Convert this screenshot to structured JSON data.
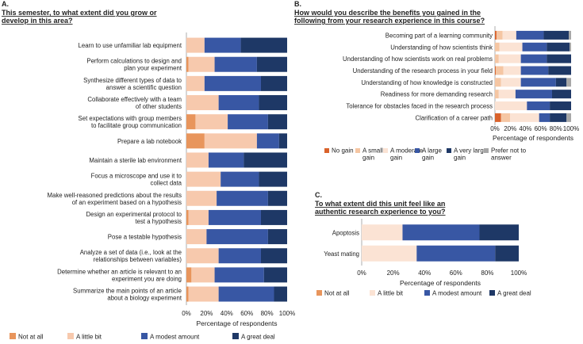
{
  "chart_data": [
    {
      "panel": "A.",
      "type": "bar",
      "stacked": true,
      "orientation": "horizontal",
      "title": [
        "This semester, to what extent did you grow or",
        "develop in this area?"
      ],
      "xlabel": "Percentage of respondents",
      "xlim": [
        0,
        100
      ],
      "xticks": [
        "0%",
        "20%",
        "40%",
        "60%",
        "80%",
        "100%"
      ],
      "colors": [
        "#e8955c",
        "#f7c9ad",
        "#3857a4",
        "#1e3866"
      ],
      "categories": [
        [
          "Learn to use unfamiliar lab equipment"
        ],
        [
          "Perform calculations to design and",
          "plan your experiment"
        ],
        [
          "Synthesize different types of data to",
          "answer a scientific question"
        ],
        [
          "Collaborate effectively with a team",
          "of other students"
        ],
        [
          "Set expectations with group members",
          "to facilitate group communication"
        ],
        [
          "Prepare a lab notebook"
        ],
        [
          "Maintain a sterile lab environment"
        ],
        [
          "Focus a microscope and use it to",
          "collect data"
        ],
        [
          "Make well-reasoned predictions about the results",
          "of an experiment based on a hypothesis"
        ],
        [
          "Design an experimental protocol to",
          "test a hypothesis"
        ],
        [
          "Pose a testable hypothesis"
        ],
        [
          "Analyze a set of data (i.e., look at the",
          "relationships between variables)"
        ],
        [
          "Determine whether an article is relevant to an",
          "experiment you are doing"
        ],
        [
          "Summarize the main points of an article",
          "about a biology experiment"
        ]
      ],
      "series": [
        {
          "name": "Not at all",
          "values": [
            0,
            2,
            0,
            0,
            9,
            18,
            0,
            0,
            0,
            2,
            0,
            0,
            5,
            2
          ]
        },
        {
          "name": "A little bit",
          "values": [
            18,
            26,
            18,
            32,
            32,
            52,
            22,
            34,
            30,
            20,
            20,
            32,
            23,
            30
          ]
        },
        {
          "name": "A modest amount",
          "values": [
            36,
            42,
            56,
            40,
            40,
            22,
            35,
            38,
            51,
            52,
            61,
            42,
            49,
            55
          ]
        },
        {
          "name": "A great deal",
          "values": [
            46,
            30,
            26,
            28,
            19,
            8,
            43,
            28,
            19,
            26,
            19,
            26,
            23,
            13
          ]
        }
      ]
    },
    {
      "panel": "B.",
      "type": "bar",
      "stacked": true,
      "orientation": "horizontal",
      "title": [
        "How would you describe the benefits you gained in the",
        "following from your research experience in this course?"
      ],
      "xlabel": "Percentage of respondents",
      "xlim": [
        0,
        100
      ],
      "xticks": [
        "0%",
        "20%",
        "40%",
        "60%",
        "80%",
        "100%"
      ],
      "colors": [
        "#d9622b",
        "#f5c6a3",
        "#fbe3d4",
        "#3857a4",
        "#1e3866",
        "#a7a7a7"
      ],
      "categories": [
        "Becoming part of a learning community",
        "Understanding of how scientists think",
        "Understanding of how scientists work on real problems",
        "Understanding of the research process in your field",
        "Understanding of how knowledge is constructed",
        "Readiness for more demanding research",
        "Tolerance for obstacles faced in the research process",
        "Clarification of a career path"
      ],
      "series": [
        {
          "name": "No gain",
          "values": [
            2,
            0,
            0,
            1,
            0,
            0,
            0,
            8
          ]
        },
        {
          "name": "A small gain",
          "values": [
            8,
            6,
            5,
            10,
            8,
            5,
            0,
            12
          ]
        },
        {
          "name": "A moderate gain",
          "values": [
            18,
            30,
            29,
            23,
            26,
            22,
            42,
            38
          ]
        },
        {
          "name": "A large gain",
          "values": [
            36,
            32,
            34,
            36,
            46,
            48,
            30,
            14
          ]
        },
        {
          "name": "A very large gain",
          "values": [
            33,
            30,
            32,
            30,
            14,
            25,
            28,
            22
          ]
        },
        {
          "name": "Prefer not to answer",
          "values": [
            3,
            2,
            0,
            0,
            6,
            0,
            0,
            6
          ]
        }
      ],
      "legend_labels": [
        [
          "No gain"
        ],
        [
          "A small",
          "gain"
        ],
        [
          "A moderate",
          "gain"
        ],
        [
          "A large",
          "gain"
        ],
        [
          "A very large",
          "gain"
        ],
        [
          "Prefer not to",
          "answer"
        ]
      ]
    },
    {
      "panel": "C.",
      "type": "bar",
      "stacked": true,
      "orientation": "horizontal",
      "title": [
        "To what extent did this unit feel like an",
        "authentic research experience to you?"
      ],
      "xlabel": "Percentage of respondents",
      "xlim": [
        0,
        100
      ],
      "xticks": [
        "0%",
        "20%",
        "40%",
        "60%",
        "80%",
        "100%"
      ],
      "colors": [
        "#e8955c",
        "#fbe3d4",
        "#3857a4",
        "#1e3866"
      ],
      "categories": [
        "Apoptosis",
        "Yeast mating"
      ],
      "series": [
        {
          "name": "Not at all",
          "values": [
            0,
            0
          ]
        },
        {
          "name": "A little bit",
          "values": [
            26,
            35
          ]
        },
        {
          "name": "A modest amount",
          "values": [
            49,
            50
          ]
        },
        {
          "name": "A great deal",
          "values": [
            25,
            15
          ]
        }
      ]
    }
  ]
}
